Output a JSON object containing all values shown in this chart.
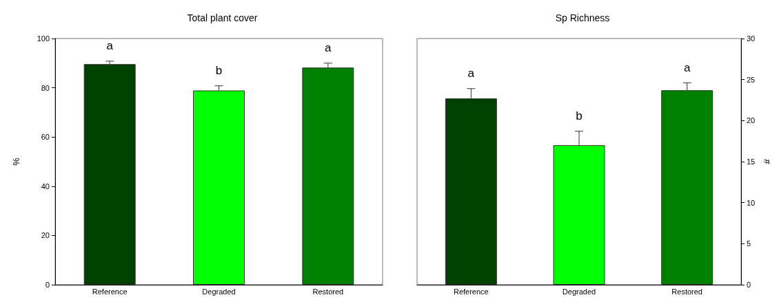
{
  "chart_data": [
    {
      "type": "bar",
      "title": "Total plant cover",
      "ylabel": "%",
      "categories": [
        "Reference",
        "Degraded",
        "Restored"
      ],
      "series": [
        {
          "values": [
            89.6,
            78.9,
            88.2
          ],
          "colors": [
            "#004000",
            "#00ff00",
            "#008000"
          ],
          "errors": [
            1.2,
            1.9,
            1.8
          ]
        }
      ],
      "ylim": [
        0,
        100
      ],
      "yticks": [
        0,
        20,
        40,
        60,
        80,
        100
      ],
      "grid": false,
      "annotations": [
        "a",
        "b",
        "a"
      ]
    },
    {
      "type": "bar",
      "title": "Sp Richness",
      "y2label": "#",
      "categories": [
        "Reference",
        "Degraded",
        "Restored"
      ],
      "series": [
        {
          "values": [
            22.7,
            17.0,
            23.7
          ],
          "colors": [
            "#004000",
            "#00ff00",
            "#008000"
          ],
          "errors": [
            1.2,
            1.7,
            0.9
          ],
          "axis": "y2"
        }
      ],
      "y2lim": [
        0,
        30
      ],
      "y2ticks": [
        0,
        5,
        10,
        15,
        20,
        25,
        30
      ],
      "grid": false,
      "annotations": [
        "a",
        "b",
        "a"
      ]
    }
  ]
}
